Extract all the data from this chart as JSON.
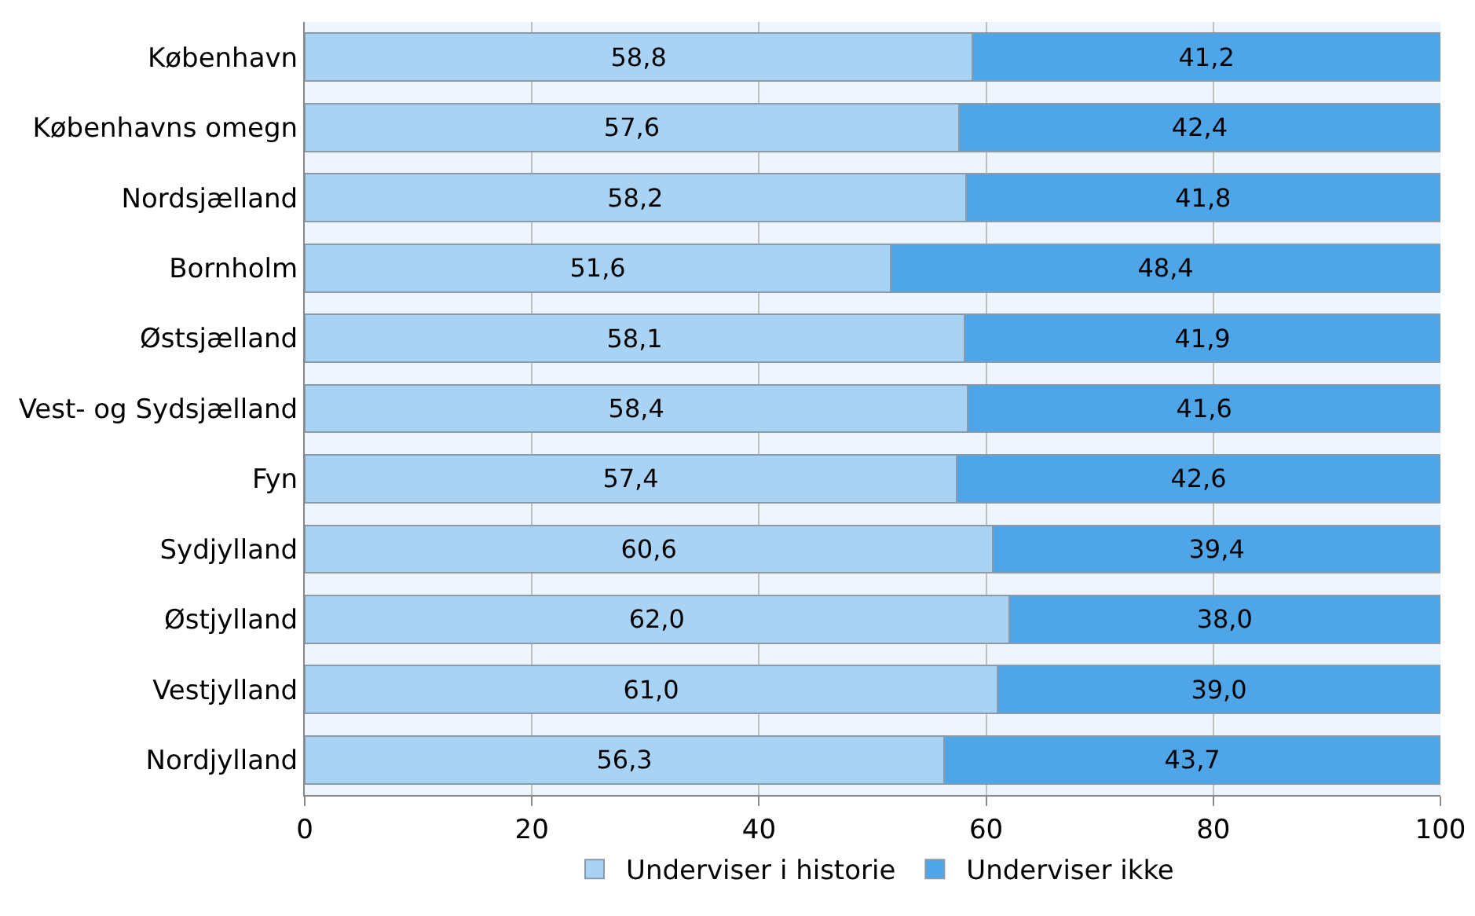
{
  "chart_data": {
    "type": "bar",
    "orientation": "horizontal",
    "stacked": true,
    "categories": [
      "København",
      "Københavns omegn",
      "Nordsjælland",
      "Bornholm",
      "Østsjælland",
      "Vest- og Sydsjælland",
      "Fyn",
      "Sydjylland",
      "Østjylland",
      "Vestjylland",
      "Nordjylland"
    ],
    "series": [
      {
        "name": "Underviser i historie",
        "color": "#a9d3f5",
        "values": [
          58.8,
          57.6,
          58.2,
          51.6,
          58.1,
          58.4,
          57.4,
          60.6,
          62.0,
          61.0,
          56.3
        ],
        "value_labels": [
          "58,8",
          "57,6",
          "58,2",
          "51,6",
          "58,1",
          "58,4",
          "57,4",
          "60,6",
          "62,0",
          "61,0",
          "56,3"
        ]
      },
      {
        "name": "Underviser ikke",
        "color": "#4ea6e8",
        "values": [
          41.2,
          42.4,
          41.8,
          48.4,
          41.9,
          41.6,
          42.6,
          39.4,
          38.0,
          39.0,
          43.7
        ],
        "value_labels": [
          "41,2",
          "42,4",
          "41,8",
          "48,4",
          "41,9",
          "41,6",
          "42,6",
          "39,4",
          "38,0",
          "39,0",
          "43,7"
        ]
      }
    ],
    "xlim": [
      0,
      100
    ],
    "xticks": [
      0,
      20,
      40,
      60,
      80,
      100
    ],
    "grid": "x",
    "legend": "bottom"
  }
}
